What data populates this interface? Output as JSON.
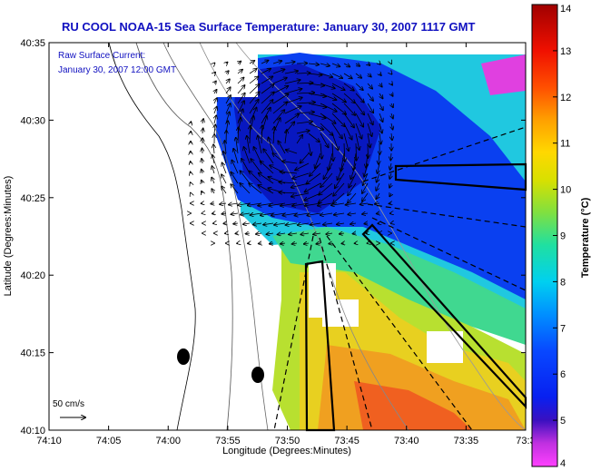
{
  "chart_data": {
    "type": "heatmap",
    "title": "RU COOL  NOAA-15  Sea Surface Temperature:  January 30, 2007 1117 GMT",
    "annotation": [
      "Raw Surface Current:",
      "January 30, 2007 12:00 GMT"
    ],
    "xlabel": "Longitude (Degrees:Minutes)",
    "ylabel": "Latitude (Degrees:Minutes)",
    "x_ticks": [
      "74:10",
      "74:05",
      "74:00",
      "73:55",
      "73:50",
      "73:45",
      "73:40",
      "73:35",
      "73:3"
    ],
    "y_ticks": [
      "40:35",
      "40:30",
      "40:25",
      "40:20",
      "40:15",
      "40:10"
    ],
    "colorbar": {
      "label": "Temperature (°C)",
      "range": [
        4,
        14
      ],
      "ticks": [
        "4",
        "5",
        "6",
        "7",
        "8",
        "9",
        "10",
        "11",
        "12",
        "13",
        "14"
      ]
    },
    "scale_label": "50 cm/s",
    "colors": {
      "title": "#1010c0",
      "land": "#ffffff",
      "cold": "#1010e0",
      "warm": "#ff3000"
    }
  }
}
